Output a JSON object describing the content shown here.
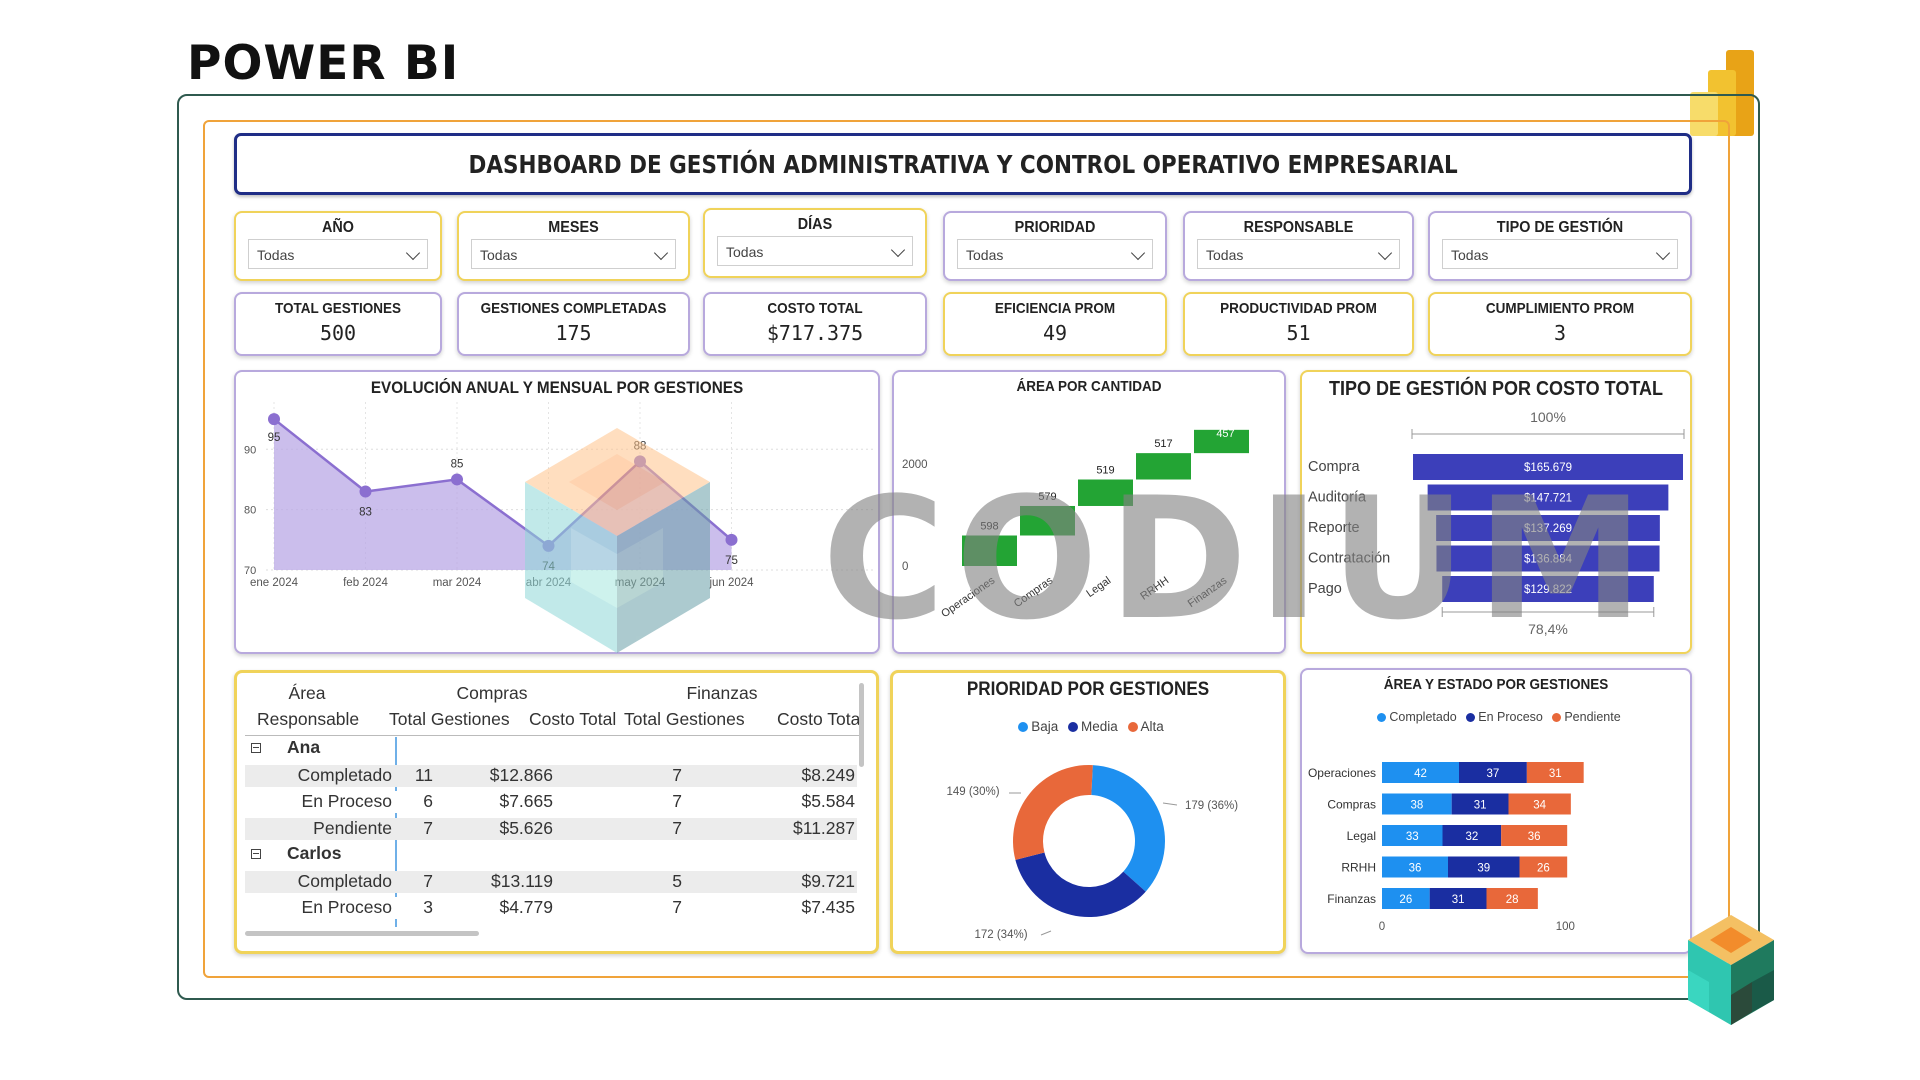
{
  "page_title": "POWER BI",
  "dashboard_title": "DASHBOARD DE GESTIÓN ADMINISTRATIVA Y CONTROL OPERATIVO EMPRESARIAL",
  "slicers": [
    {
      "label": "AÑO",
      "value": "Todas"
    },
    {
      "label": "MESES",
      "value": "Todas"
    },
    {
      "label": "DÍAS",
      "value": "Todas"
    },
    {
      "label": "PRIORIDAD",
      "value": "Todas"
    },
    {
      "label": "RESPONSABLE",
      "value": "Todas"
    },
    {
      "label": "TIPO DE GESTIÓN",
      "value": "Todas"
    }
  ],
  "kpis": [
    {
      "label": "TOTAL GESTIONES",
      "value": "500"
    },
    {
      "label": "GESTIONES COMPLETADAS",
      "value": "175"
    },
    {
      "label": "COSTO TOTAL",
      "value": "$717.375"
    },
    {
      "label": "EFICIENCIA PROM",
      "value": "49"
    },
    {
      "label": "PRODUCTIVIDAD PROM",
      "value": "51"
    },
    {
      "label": "CUMPLIMIENTO PROM",
      "value": "3"
    }
  ],
  "watermark": "CODIUM",
  "colors": {
    "purple": "#8b6fd0",
    "green": "#23a434",
    "navy": "#3c3fba",
    "light_blue": "#1e90f0",
    "dark_blue": "#1a2ea1",
    "orange": "#e8683a",
    "gold": "#f0d35a"
  },
  "chart_data": [
    {
      "id": "line",
      "type": "area",
      "title": "EVOLUCIÓN ANUAL Y MENSUAL POR GESTIONES",
      "categories": [
        "ene 2024",
        "feb 2024",
        "mar 2024",
        "abr 2024",
        "may 2024",
        "jun 2024"
      ],
      "values": [
        95,
        83,
        85,
        74,
        88,
        75
      ],
      "yticks": [
        70,
        80,
        90
      ],
      "ylim": [
        70,
        97
      ],
      "grid": true
    },
    {
      "id": "waterfall",
      "type": "bar",
      "title": "ÁREA POR CANTIDAD",
      "categories": [
        "Operaciones",
        "Compras",
        "Legal",
        "RRHH",
        "Finanzas"
      ],
      "values": [
        598,
        579,
        519,
        517,
        457
      ],
      "yticks": [
        0,
        2000
      ],
      "ylim": [
        -300,
        2800
      ]
    },
    {
      "id": "funnel",
      "type": "bar",
      "title": "TIPO DE GESTIÓN POR COSTO TOTAL",
      "categories": [
        "Compra",
        "Auditoría",
        "Reporte",
        "Contratación",
        "Pago"
      ],
      "values": [
        165679,
        147721,
        137269,
        136884,
        129822
      ],
      "labels": [
        "$165.679",
        "$147.721",
        "$137.269",
        "$136.884",
        "$129.822"
      ],
      "top_label": "100%",
      "bottom_label": "78,4%"
    },
    {
      "id": "donut",
      "type": "pie",
      "title": "PRIORIDAD POR GESTIONES",
      "series": [
        {
          "name": "Baja",
          "value": 179,
          "label": "179 (36%)",
          "color": "#1e90f0"
        },
        {
          "name": "Media",
          "value": 172,
          "label": "172 (34%)",
          "color": "#1a2ea1"
        },
        {
          "name": "Alta",
          "value": 149,
          "label": "149 (30%)",
          "color": "#e8683a"
        }
      ],
      "legend": "top"
    },
    {
      "id": "stacked",
      "type": "bar",
      "title": "ÁREA Y ESTADO POR GESTIONES",
      "categories": [
        "Operaciones",
        "Compras",
        "Legal",
        "RRHH",
        "Finanzas"
      ],
      "series": [
        {
          "name": "Completado",
          "values": [
            42,
            38,
            33,
            36,
            26
          ],
          "color": "#1e90f0"
        },
        {
          "name": "En Proceso",
          "values": [
            37,
            31,
            32,
            39,
            31
          ],
          "color": "#1a2ea1"
        },
        {
          "name": "Pendiente",
          "values": [
            31,
            34,
            36,
            26,
            28
          ],
          "color": "#e8683a"
        }
      ],
      "xticks": [
        0,
        100
      ],
      "xlim": [
        0,
        130
      ],
      "legend": "top"
    }
  ],
  "matrix": {
    "row_header_1": "Área",
    "row_header_2": "Responsable",
    "groups": [
      "Compras",
      "Finanzas"
    ],
    "columns": [
      "Total Gestiones",
      "Costo Total",
      "Total Gestiones",
      "Costo Tota"
    ],
    "rows": [
      {
        "kind": "group",
        "label": "Ana"
      },
      {
        "kind": "item",
        "label": "Completado",
        "cells": [
          "11",
          "$12.866",
          "7",
          "$8.249"
        ]
      },
      {
        "kind": "item",
        "label": "En Proceso",
        "cells": [
          "6",
          "$7.665",
          "7",
          "$5.584"
        ]
      },
      {
        "kind": "item",
        "label": "Pendiente",
        "cells": [
          "7",
          "$5.626",
          "7",
          "$11.287"
        ]
      },
      {
        "kind": "group",
        "label": "Carlos"
      },
      {
        "kind": "item",
        "label": "Completado",
        "cells": [
          "7",
          "$13.119",
          "5",
          "$9.721"
        ]
      },
      {
        "kind": "item",
        "label": "En Proceso",
        "cells": [
          "3",
          "$4.779",
          "7",
          "$7.435"
        ]
      }
    ]
  }
}
